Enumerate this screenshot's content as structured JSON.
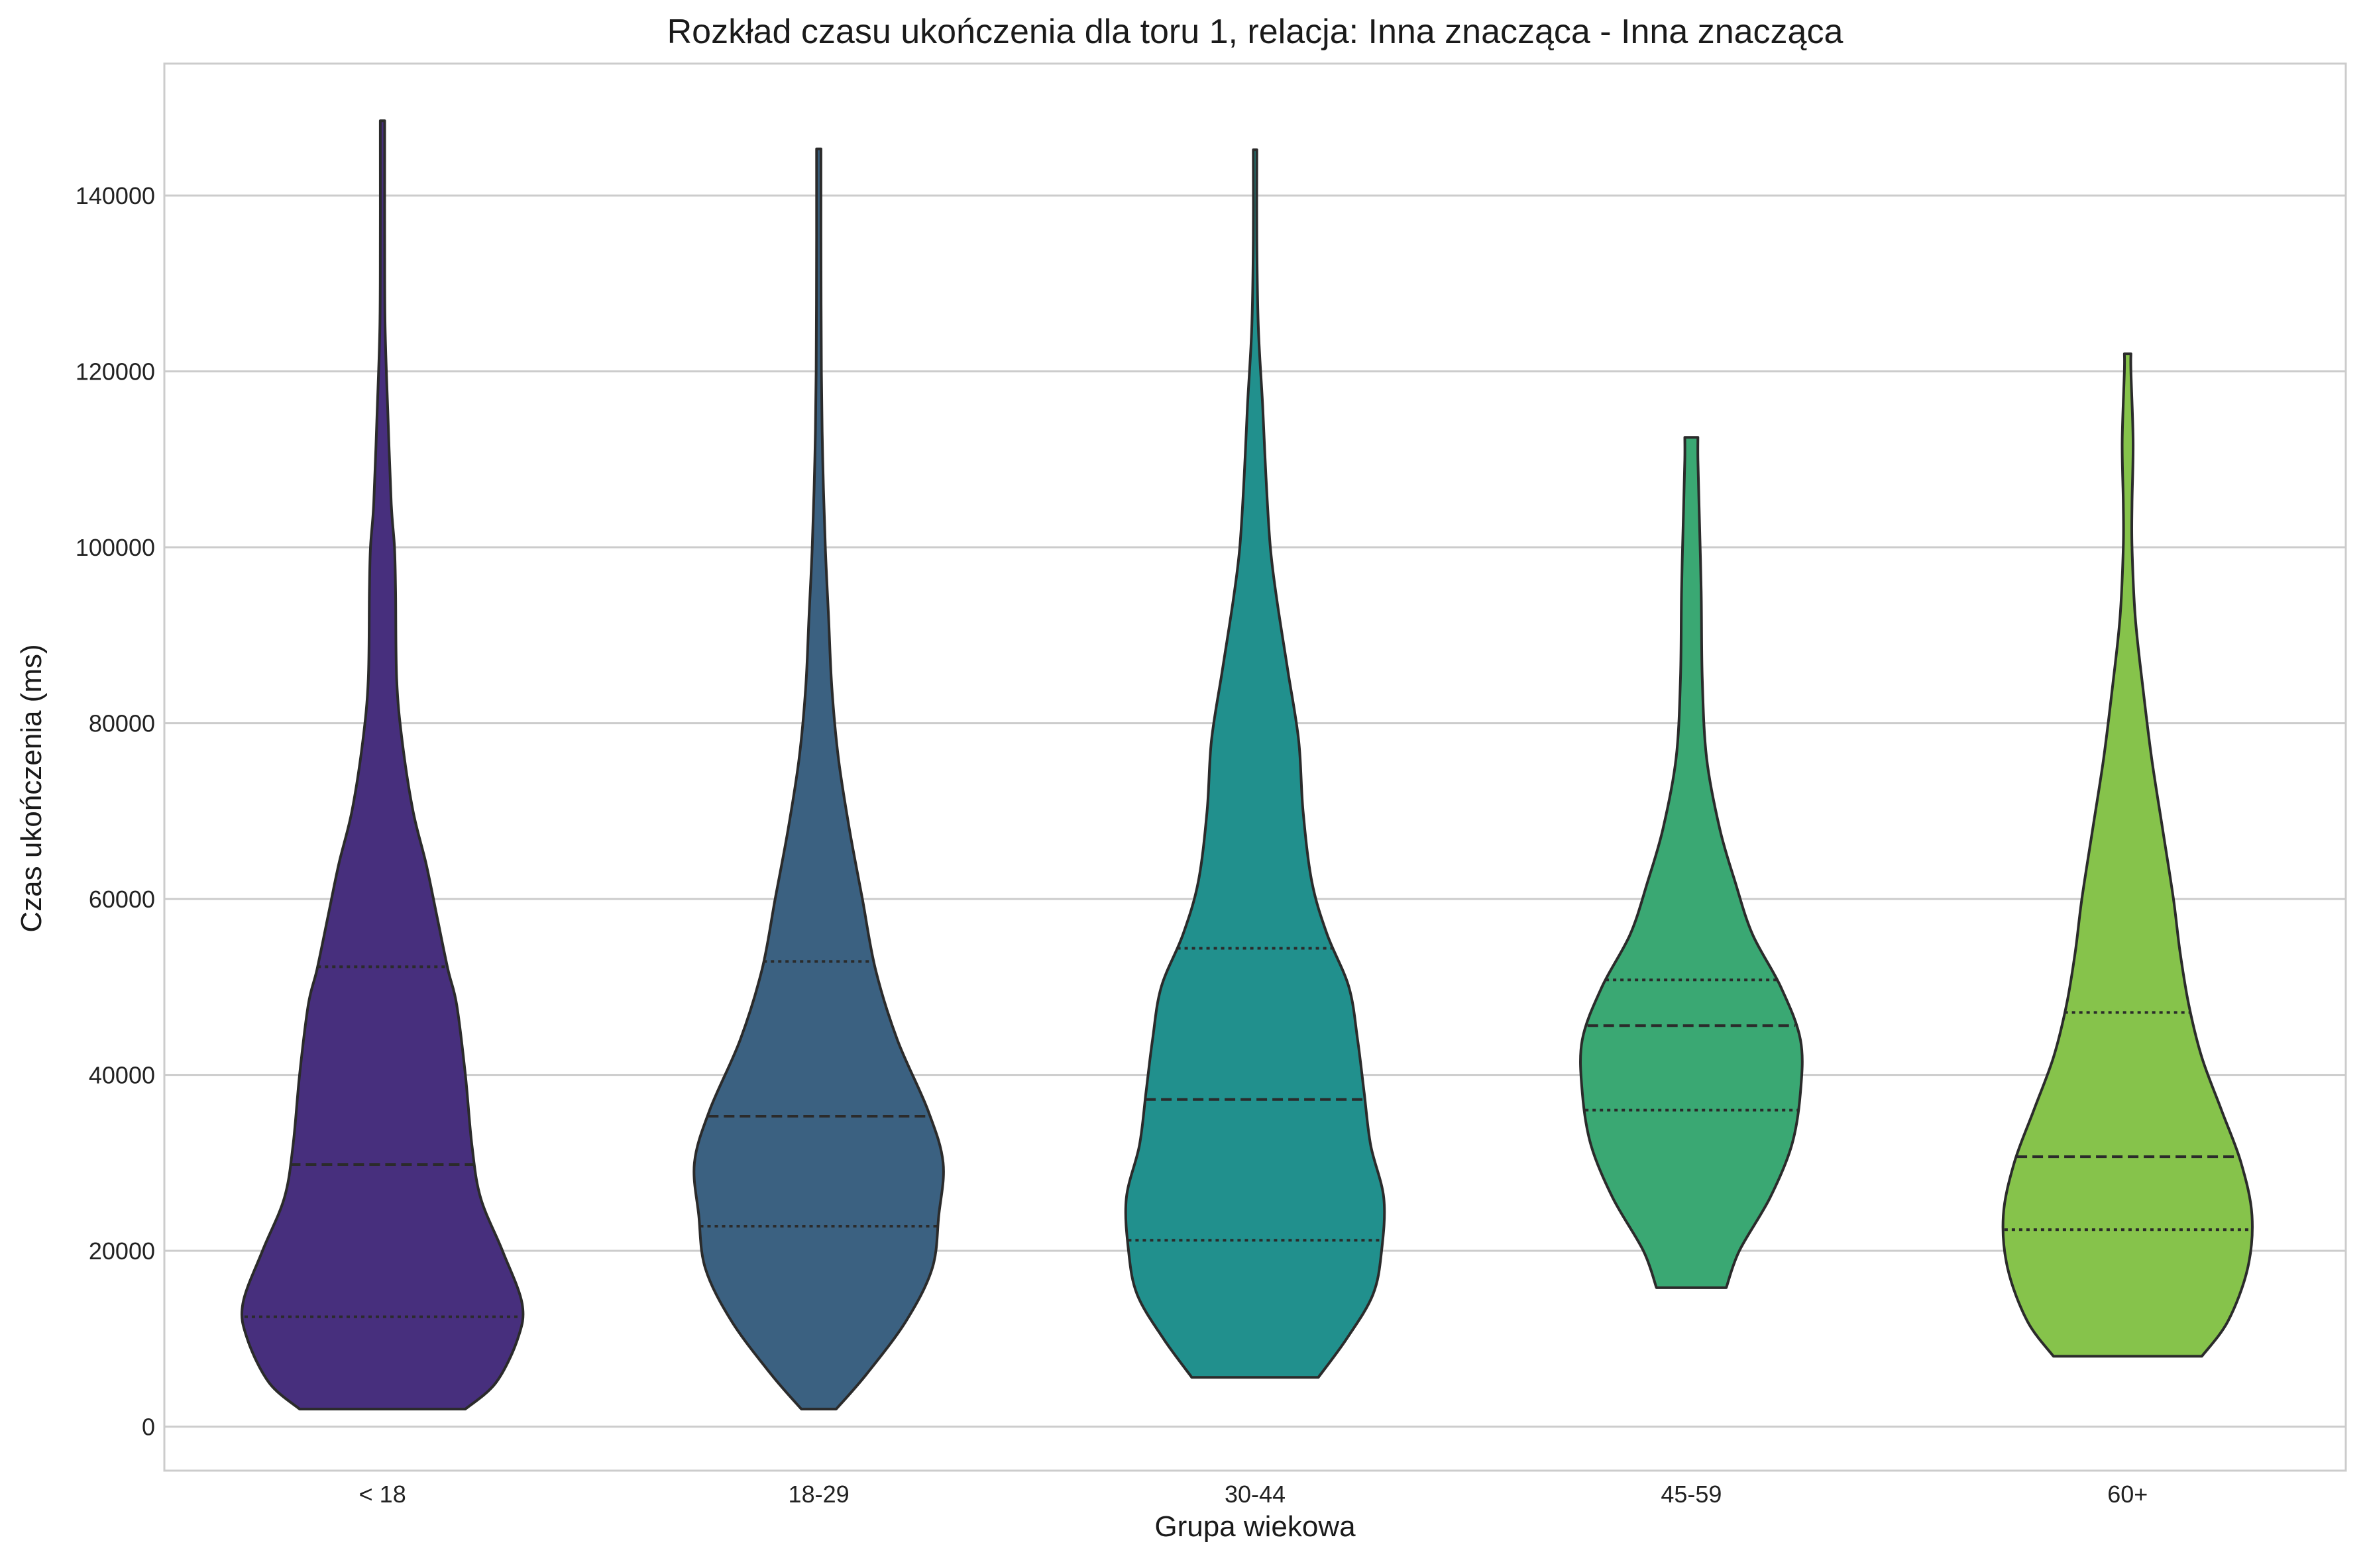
{
  "chart_data": {
    "type": "violin",
    "title": "Rozkład czasu ukończenia dla toru 1, relacja: Inna znacząca - Inna znacząca",
    "xlabel": "Grupa wiekowa",
    "ylabel": "Czas ukończenia (ms)",
    "ylim": [
      -5000,
      155000
    ],
    "yticks": [
      0,
      20000,
      40000,
      60000,
      80000,
      100000,
      120000,
      140000
    ],
    "grid": "horizontal",
    "categories": [
      "< 18",
      "18-29",
      "30-44",
      "45-59",
      "60+"
    ],
    "colors": [
      "#472f7d",
      "#3b6181",
      "#21908d",
      "#3aa873",
      "#86c34b"
    ],
    "violins": [
      {
        "category": "< 18",
        "min": 2000,
        "max": 148500,
        "q1": 12500,
        "median": 29800,
        "q3": 52300,
        "profile": [
          [
            2000,
            0.38
          ],
          [
            5000,
            0.52
          ],
          [
            10000,
            0.62
          ],
          [
            14000,
            0.64
          ],
          [
            20000,
            0.55
          ],
          [
            26000,
            0.45
          ],
          [
            32000,
            0.41
          ],
          [
            40000,
            0.38
          ],
          [
            48000,
            0.34
          ],
          [
            52000,
            0.3
          ],
          [
            58000,
            0.25
          ],
          [
            64000,
            0.2
          ],
          [
            70000,
            0.14
          ],
          [
            78000,
            0.09
          ],
          [
            85000,
            0.065
          ],
          [
            95000,
            0.06
          ],
          [
            100000,
            0.055
          ],
          [
            105000,
            0.04
          ],
          [
            115000,
            0.025
          ],
          [
            125000,
            0.012
          ],
          [
            135000,
            0.01
          ],
          [
            145000,
            0.01
          ],
          [
            148500,
            0.01
          ]
        ]
      },
      {
        "category": "18-29",
        "min": 2000,
        "max": 145300,
        "q1": 22800,
        "median": 35300,
        "q3": 52900,
        "profile": [
          [
            2000,
            0.08
          ],
          [
            6000,
            0.22
          ],
          [
            12000,
            0.4
          ],
          [
            18000,
            0.52
          ],
          [
            24000,
            0.55
          ],
          [
            30000,
            0.57
          ],
          [
            36000,
            0.5
          ],
          [
            44000,
            0.36
          ],
          [
            52000,
            0.26
          ],
          [
            60000,
            0.2
          ],
          [
            68000,
            0.14
          ],
          [
            76000,
            0.09
          ],
          [
            84000,
            0.06
          ],
          [
            92000,
            0.045
          ],
          [
            100000,
            0.03
          ],
          [
            110000,
            0.018
          ],
          [
            120000,
            0.012
          ],
          [
            135000,
            0.01
          ],
          [
            145300,
            0.01
          ]
        ]
      },
      {
        "category": "30-44",
        "min": 5600,
        "max": 145200,
        "q1": 21200,
        "median": 37200,
        "q3": 54400,
        "profile": [
          [
            5600,
            0.29
          ],
          [
            10000,
            0.42
          ],
          [
            15000,
            0.54
          ],
          [
            20000,
            0.58
          ],
          [
            26000,
            0.59
          ],
          [
            32000,
            0.53
          ],
          [
            38000,
            0.5
          ],
          [
            44000,
            0.47
          ],
          [
            50000,
            0.43
          ],
          [
            56000,
            0.33
          ],
          [
            62000,
            0.26
          ],
          [
            70000,
            0.22
          ],
          [
            78000,
            0.2
          ],
          [
            86000,
            0.15
          ],
          [
            94000,
            0.1
          ],
          [
            100000,
            0.07
          ],
          [
            108000,
            0.05
          ],
          [
            116000,
            0.035
          ],
          [
            125000,
            0.015
          ],
          [
            135000,
            0.008
          ],
          [
            145200,
            0.008
          ]
        ]
      },
      {
        "category": "45-59",
        "min": 15800,
        "max": 112500,
        "q1": 36000,
        "median": 45600,
        "q3": 50800,
        "profile": [
          [
            15800,
            0.16
          ],
          [
            20000,
            0.22
          ],
          [
            26000,
            0.36
          ],
          [
            32000,
            0.46
          ],
          [
            38000,
            0.5
          ],
          [
            44000,
            0.5
          ],
          [
            50000,
            0.41
          ],
          [
            56000,
            0.28
          ],
          [
            62000,
            0.2
          ],
          [
            68000,
            0.13
          ],
          [
            76000,
            0.07
          ],
          [
            85000,
            0.05
          ],
          [
            95000,
            0.045
          ],
          [
            105000,
            0.035
          ],
          [
            110000,
            0.03
          ],
          [
            112500,
            0.03
          ]
        ]
      },
      {
        "category": "60+",
        "min": 8000,
        "max": 122000,
        "q1": 22400,
        "median": 30700,
        "q3": 47100,
        "profile": [
          [
            8000,
            0.34
          ],
          [
            12000,
            0.46
          ],
          [
            18000,
            0.55
          ],
          [
            24000,
            0.57
          ],
          [
            30000,
            0.52
          ],
          [
            36000,
            0.43
          ],
          [
            42000,
            0.34
          ],
          [
            48000,
            0.28
          ],
          [
            54000,
            0.24
          ],
          [
            60000,
            0.21
          ],
          [
            68000,
            0.16
          ],
          [
            76000,
            0.11
          ],
          [
            84000,
            0.07
          ],
          [
            92000,
            0.035
          ],
          [
            100000,
            0.02
          ],
          [
            105000,
            0.02
          ],
          [
            112000,
            0.025
          ],
          [
            120000,
            0.015
          ],
          [
            122000,
            0.015
          ]
        ]
      }
    ]
  }
}
